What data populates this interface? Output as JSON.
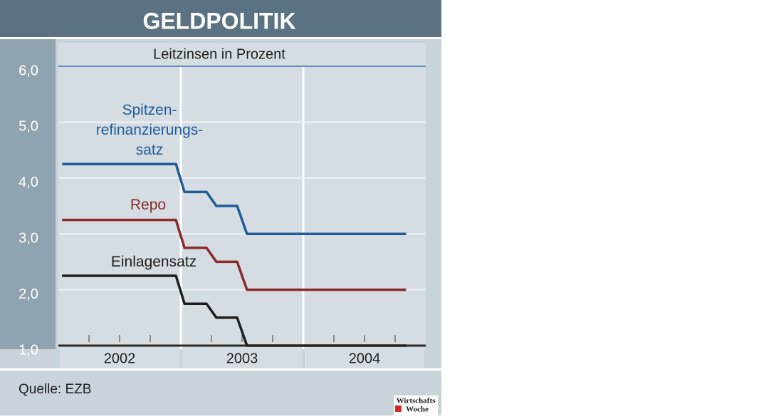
{
  "chart_data": {
    "type": "line",
    "title": "GELDPOLITIK",
    "subtitle": "Leitzinsen in Prozent",
    "source": "Quelle: EZB",
    "logo": [
      "Wirtschafts",
      "Woche"
    ],
    "x": [
      2002.03,
      2002.96,
      2003.03,
      2003.21,
      2003.29,
      2003.46,
      2003.54,
      2004.84
    ],
    "series": [
      {
        "name": "Spitzen-\nrefinanzierungs-\nsatz",
        "color": "#1f5c99",
        "values": [
          4.25,
          4.25,
          3.75,
          3.75,
          3.5,
          3.5,
          3.0,
          3.0
        ]
      },
      {
        "name": "Repo",
        "color": "#8b2a2a",
        "values": [
          3.25,
          3.25,
          2.75,
          2.75,
          2.5,
          2.5,
          2.0,
          2.0
        ]
      },
      {
        "name": "Einlagensatz",
        "color": "#1e1e1e",
        "values": [
          2.25,
          2.25,
          1.75,
          1.75,
          1.5,
          1.5,
          1.0,
          1.0
        ]
      }
    ],
    "xlim": [
      2002,
      2005
    ],
    "year_bands": [
      2002,
      2003,
      2004
    ],
    "minor_xticks": [
      2002.25,
      2002.5,
      2002.75,
      2003.25,
      2003.5,
      2003.75,
      2004.25,
      2004.5,
      2004.75
    ],
    "ylim": [
      1,
      6
    ],
    "yticks": [
      {
        "value": 1,
        "label": "1,0"
      },
      {
        "value": 2,
        "label": "2,0"
      },
      {
        "value": 3,
        "label": "3,0"
      },
      {
        "value": 4,
        "label": "4,0"
      },
      {
        "value": 5,
        "label": "5,0"
      },
      {
        "value": 6,
        "label": "6,0"
      }
    ],
    "grid": true
  }
}
